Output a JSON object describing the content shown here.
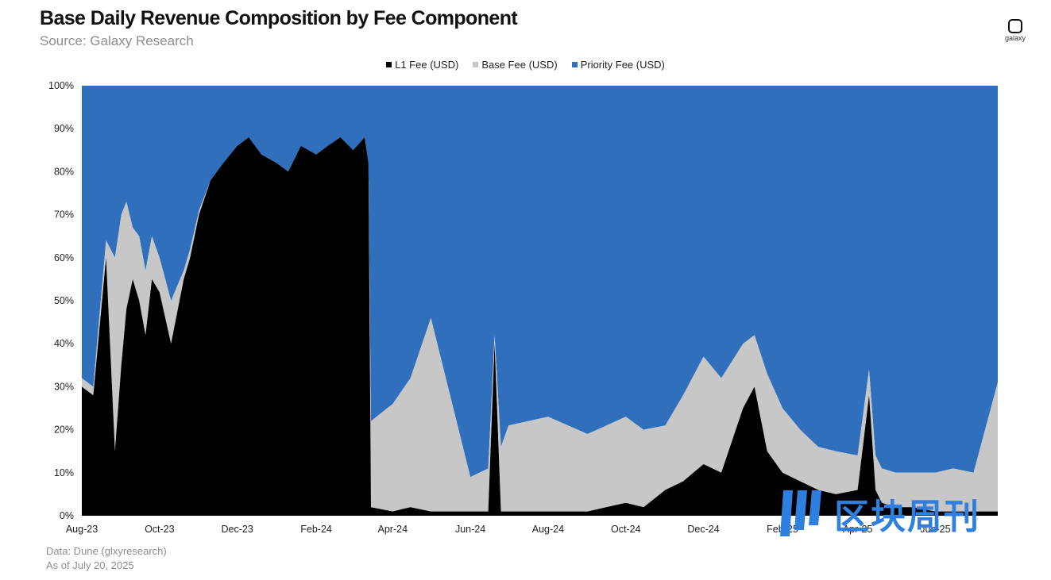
{
  "header": {
    "title": "Base Daily Revenue Composition by Fee Component",
    "subtitle": "Source: Galaxy Research",
    "logo_text": "galaxy"
  },
  "footer": {
    "line1": "Data: Dune (glxyresearch)",
    "line2": "As of July 20, 2025"
  },
  "watermark": {
    "text": "区块周刊",
    "color": "#2f7fe0"
  },
  "colors": {
    "l1": "#000000",
    "base": "#c7c7c7",
    "priority": "#2f6fbb"
  },
  "chart_data": {
    "type": "area",
    "stacked": true,
    "normalized": true,
    "x_ticks": [
      "Aug-23",
      "Oct-23",
      "Dec-23",
      "Feb-24",
      "Apr-24",
      "Jun-24",
      "Aug-24",
      "Oct-24",
      "Dec-24",
      "Feb-25",
      "Apr-25",
      "Jun-25"
    ],
    "y_ticks": [
      "0%",
      "10%",
      "20%",
      "30%",
      "40%",
      "50%",
      "60%",
      "70%",
      "80%",
      "90%",
      "100%"
    ],
    "ylim": [
      0,
      100
    ],
    "legend_position": "top-center",
    "series": [
      {
        "name": "L1 Fee (USD)",
        "color": "#000000",
        "x": [
          "2023-08-01",
          "2023-08-10",
          "2023-08-20",
          "2023-08-27",
          "2023-09-01",
          "2023-09-05",
          "2023-09-10",
          "2023-09-15",
          "2023-09-20",
          "2023-09-25",
          "2023-10-01",
          "2023-10-10",
          "2023-10-20",
          "2023-10-25",
          "2023-11-01",
          "2023-11-10",
          "2023-11-20",
          "2023-12-01",
          "2023-12-10",
          "2023-12-20",
          "2024-01-01",
          "2024-01-10",
          "2024-01-20",
          "2024-02-01",
          "2024-02-10",
          "2024-02-20",
          "2024-03-01",
          "2024-03-10",
          "2024-03-13",
          "2024-03-15",
          "2024-04-01",
          "2024-04-15",
          "2024-05-01",
          "2024-06-01",
          "2024-06-15",
          "2024-06-20",
          "2024-06-25",
          "2024-07-01",
          "2024-08-01",
          "2024-09-01",
          "2024-10-01",
          "2024-10-15",
          "2024-11-01",
          "2024-11-15",
          "2024-12-01",
          "2024-12-15",
          "2025-01-01",
          "2025-01-10",
          "2025-01-20",
          "2025-02-01",
          "2025-02-15",
          "2025-03-01",
          "2025-03-15",
          "2025-04-01",
          "2025-04-10",
          "2025-04-15",
          "2025-04-20",
          "2025-05-01",
          "2025-05-15",
          "2025-06-01",
          "2025-06-15",
          "2025-07-01",
          "2025-07-20"
        ],
        "values": [
          30,
          28,
          60,
          15,
          35,
          48,
          55,
          50,
          42,
          55,
          52,
          40,
          55,
          60,
          70,
          78,
          82,
          86,
          88,
          84,
          82,
          80,
          86,
          84,
          86,
          88,
          85,
          88,
          82,
          2,
          1,
          2,
          1,
          1,
          1,
          40,
          1,
          1,
          1,
          1,
          3,
          2,
          6,
          8,
          12,
          10,
          25,
          30,
          15,
          10,
          8,
          6,
          5,
          6,
          28,
          6,
          3,
          2,
          2,
          1,
          1,
          1,
          1
        ]
      },
      {
        "name": "Base Fee (USD)",
        "color": "#c7c7c7",
        "x": [
          "2023-08-01",
          "2023-08-10",
          "2023-08-20",
          "2023-08-27",
          "2023-09-01",
          "2023-09-05",
          "2023-09-10",
          "2023-09-15",
          "2023-09-20",
          "2023-09-25",
          "2023-10-01",
          "2023-10-10",
          "2023-10-20",
          "2023-10-25",
          "2023-11-01",
          "2023-11-10",
          "2023-11-20",
          "2023-12-01",
          "2023-12-10",
          "2023-12-20",
          "2024-01-01",
          "2024-01-10",
          "2024-01-20",
          "2024-02-01",
          "2024-02-10",
          "2024-02-20",
          "2024-03-01",
          "2024-03-10",
          "2024-03-13",
          "2024-03-15",
          "2024-04-01",
          "2024-04-15",
          "2024-05-01",
          "2024-06-01",
          "2024-06-15",
          "2024-06-20",
          "2024-06-25",
          "2024-07-01",
          "2024-08-01",
          "2024-09-01",
          "2024-10-01",
          "2024-10-15",
          "2024-11-01",
          "2024-11-15",
          "2024-12-01",
          "2024-12-15",
          "2025-01-01",
          "2025-01-10",
          "2025-01-20",
          "2025-02-01",
          "2025-02-15",
          "2025-03-01",
          "2025-03-15",
          "2025-04-01",
          "2025-04-10",
          "2025-04-15",
          "2025-04-20",
          "2025-05-01",
          "2025-05-15",
          "2025-06-01",
          "2025-06-15",
          "2025-07-01",
          "2025-07-20"
        ],
        "values": [
          2,
          2,
          4,
          45,
          35,
          25,
          12,
          15,
          15,
          10,
          8,
          10,
          2,
          2,
          1,
          0,
          0,
          0,
          0,
          0,
          0,
          0,
          0,
          0,
          0,
          0,
          0,
          0,
          0,
          20,
          25,
          30,
          45,
          8,
          10,
          2,
          15,
          20,
          22,
          18,
          20,
          18,
          15,
          20,
          25,
          22,
          15,
          12,
          18,
          15,
          12,
          10,
          10,
          8,
          6,
          8,
          8,
          8,
          8,
          9,
          10,
          9,
          30
        ]
      },
      {
        "name": "Priority Fee (USD)",
        "color": "#2f6fbb",
        "x": [
          "2023-08-01",
          "2023-08-10",
          "2023-08-20",
          "2023-08-27",
          "2023-09-01",
          "2023-09-05",
          "2023-09-10",
          "2023-09-15",
          "2023-09-20",
          "2023-09-25",
          "2023-10-01",
          "2023-10-10",
          "2023-10-20",
          "2023-10-25",
          "2023-11-01",
          "2023-11-10",
          "2023-11-20",
          "2023-12-01",
          "2023-12-10",
          "2023-12-20",
          "2024-01-01",
          "2024-01-10",
          "2024-01-20",
          "2024-02-01",
          "2024-02-10",
          "2024-02-20",
          "2024-03-01",
          "2024-03-10",
          "2024-03-13",
          "2024-03-15",
          "2024-04-01",
          "2024-04-15",
          "2024-05-01",
          "2024-06-01",
          "2024-06-15",
          "2024-06-20",
          "2024-06-25",
          "2024-07-01",
          "2024-08-01",
          "2024-09-01",
          "2024-10-01",
          "2024-10-15",
          "2024-11-01",
          "2024-11-15",
          "2024-12-01",
          "2024-12-15",
          "2025-01-01",
          "2025-01-10",
          "2025-01-20",
          "2025-02-01",
          "2025-02-15",
          "2025-03-01",
          "2025-03-15",
          "2025-04-01",
          "2025-04-10",
          "2025-04-15",
          "2025-04-20",
          "2025-05-01",
          "2025-05-15",
          "2025-06-01",
          "2025-06-15",
          "2025-07-01",
          "2025-07-20"
        ],
        "values": [
          68,
          70,
          36,
          40,
          30,
          27,
          33,
          35,
          43,
          35,
          40,
          50,
          43,
          38,
          29,
          22,
          18,
          14,
          12,
          16,
          18,
          20,
          14,
          16,
          14,
          12,
          15,
          12,
          18,
          78,
          74,
          68,
          54,
          91,
          89,
          58,
          84,
          79,
          77,
          81,
          77,
          80,
          79,
          72,
          63,
          68,
          60,
          58,
          67,
          75,
          80,
          84,
          85,
          86,
          66,
          86,
          89,
          90,
          90,
          90,
          89,
          90,
          69
        ]
      }
    ]
  }
}
